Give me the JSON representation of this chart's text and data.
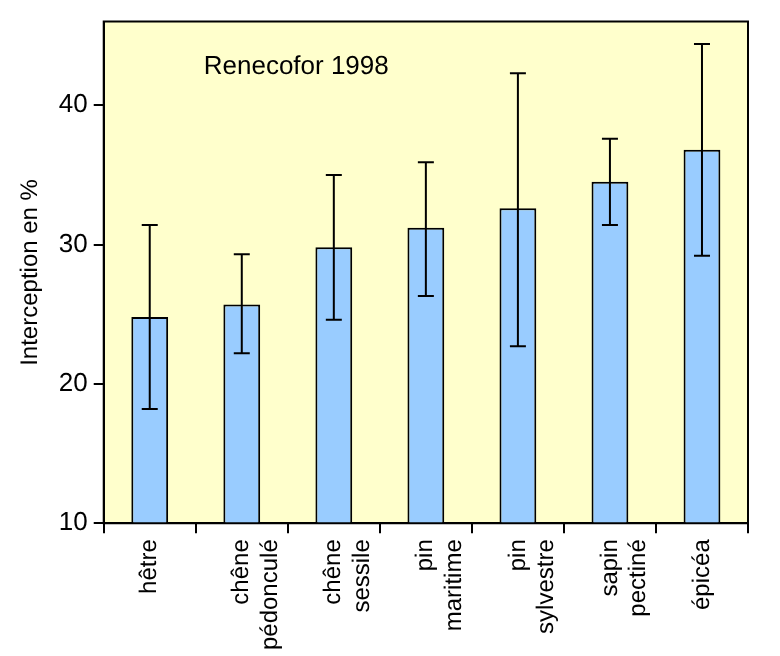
{
  "chart_data": {
    "type": "bar",
    "ylabel": "Interception en %",
    "categories": [
      "hêtre",
      "chêne pédonculé",
      "chêne sessile",
      "pin maritime",
      "pin sylvestre",
      "sapin pectiné",
      "épicéa"
    ],
    "values": [
      24.8,
      25.7,
      29.8,
      31.2,
      32.6,
      34.5,
      36.8
    ],
    "errors": [
      [
        18.2,
        31.4
      ],
      [
        22.2,
        29.3
      ],
      [
        24.6,
        35.0
      ],
      [
        26.3,
        35.9
      ],
      [
        22.7,
        42.3
      ],
      [
        31.4,
        37.6
      ],
      [
        29.2,
        44.4
      ]
    ],
    "color": "#99ccff",
    "ylim": [
      10,
      46
    ],
    "yticks": [
      10,
      20,
      30,
      40
    ],
    "grid": false,
    "legend": false,
    "annotations": [
      "Renecofor 1998"
    ]
  }
}
